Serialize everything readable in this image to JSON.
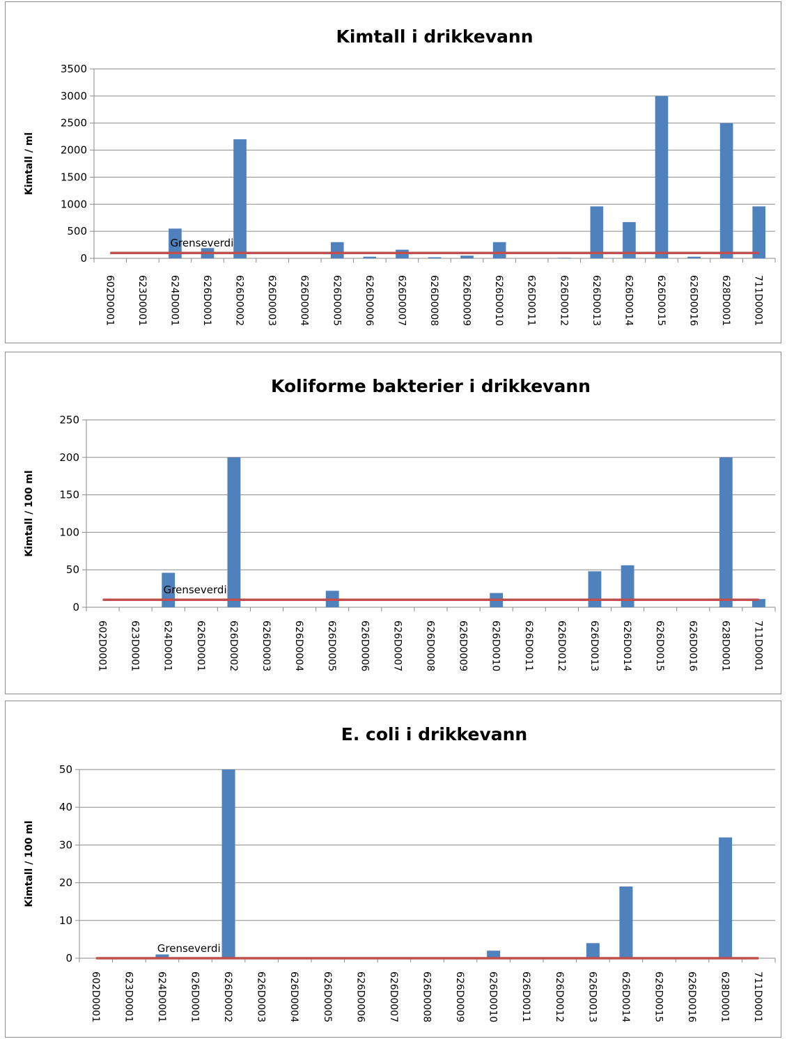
{
  "chart_data": [
    {
      "type": "bar",
      "title": "Kimtall i drikkevann",
      "xlabel": "",
      "ylabel": "Kimtall / ml",
      "ylim": [
        0,
        3500
      ],
      "yticks": [
        0,
        500,
        1000,
        1500,
        2000,
        2500,
        3000,
        3500
      ],
      "grid": true,
      "categories": [
        "602D0001",
        "623D0001",
        "624D0001",
        "626D0001",
        "626D0002",
        "626D0003",
        "626D0004",
        "626D0005",
        "626D0006",
        "626D0007",
        "626D0008",
        "626D0009",
        "626D0010",
        "626D0011",
        "626D0012",
        "626D0013",
        "626D0014",
        "626D0015",
        "626D0016",
        "628D0001",
        "711D0001"
      ],
      "values": [
        0,
        0,
        550,
        190,
        2200,
        0,
        0,
        300,
        30,
        160,
        20,
        50,
        300,
        0,
        10,
        960,
        670,
        3000,
        30,
        2500,
        960
      ],
      "bar_color": "#4f81bd",
      "reference_line": {
        "label": "Grenseverdi",
        "value": 100,
        "color": "#c0504d"
      }
    },
    {
      "type": "bar",
      "title": "Koliforme bakterier i drikkevann",
      "xlabel": "",
      "ylabel": "Kimtall / 100 ml",
      "ylim": [
        0,
        250
      ],
      "yticks": [
        0,
        50,
        100,
        150,
        200,
        250
      ],
      "grid": true,
      "categories": [
        "602D0001",
        "623D0001",
        "624D0001",
        "626D0001",
        "626D0002",
        "626D0003",
        "626D0004",
        "626D0005",
        "626D0006",
        "626D0007",
        "626D0008",
        "626D0009",
        "626D0010",
        "626D0011",
        "626D0012",
        "626D0013",
        "626D0014",
        "626D0015",
        "626D0016",
        "628D0001",
        "711D0001"
      ],
      "values": [
        0,
        0,
        46,
        0,
        200,
        0,
        0,
        22,
        0,
        0,
        0,
        0,
        19,
        0,
        0,
        48,
        56,
        0,
        0,
        200,
        11
      ],
      "bar_color": "#4f81bd",
      "reference_line": {
        "label": "Grenseverdi",
        "value": 10,
        "color": "#c0504d"
      }
    },
    {
      "type": "bar",
      "title": "E. coli i drikkevann",
      "xlabel": "",
      "ylabel": "Kimtall / 100 ml",
      "ylim": [
        0,
        50
      ],
      "yticks": [
        0,
        10,
        20,
        30,
        40,
        50
      ],
      "grid": true,
      "categories": [
        "602D0001",
        "623D0001",
        "624D0001",
        "626D0001",
        "626D0002",
        "626D0003",
        "626D0004",
        "626D0005",
        "626D0006",
        "626D0007",
        "626D0008",
        "626D0009",
        "626D0010",
        "626D0011",
        "626D0012",
        "626D0013",
        "626D0014",
        "626D0015",
        "626D0016",
        "628D0001",
        "711D0001"
      ],
      "values": [
        0,
        0,
        1,
        0,
        50,
        0,
        0,
        0,
        0,
        0,
        0,
        0,
        2,
        0,
        0,
        4,
        19,
        0,
        0,
        32,
        0
      ],
      "bar_color": "#4f81bd",
      "reference_line": {
        "label": "Grenseverdi",
        "value": 0,
        "color": "#c0504d"
      }
    }
  ]
}
